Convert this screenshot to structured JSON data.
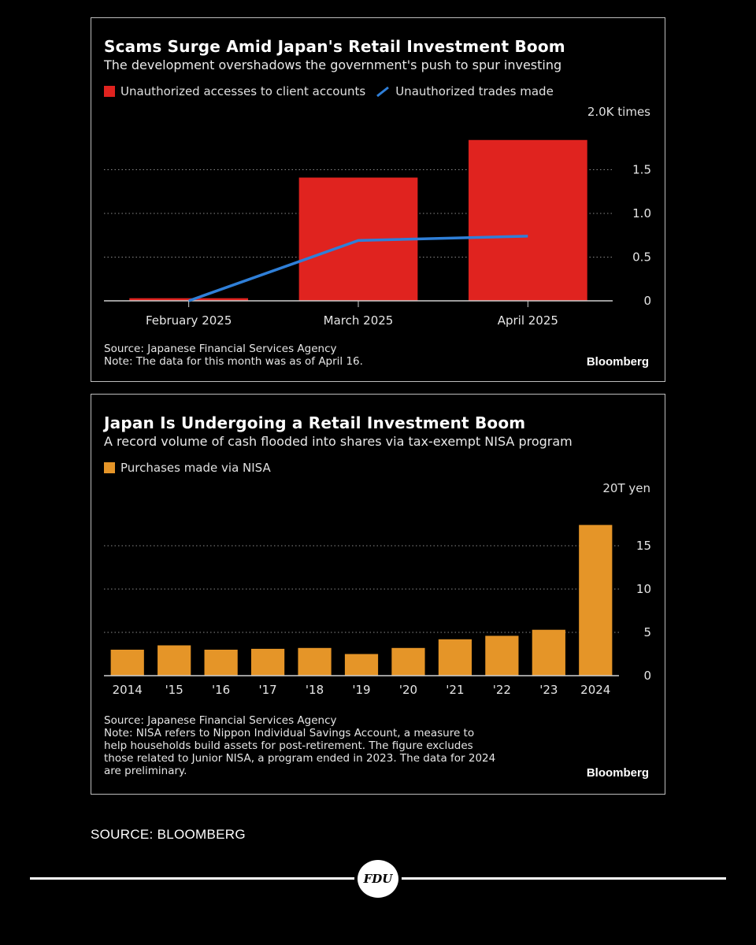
{
  "charts": {
    "panel1": {
      "title": "Scams Surge Amid Japan's Retail Investment Boom",
      "subtitle": "The development overshadows the government's push to spur investing",
      "legend": [
        {
          "label": "Unauthorized accesses to client accounts",
          "color": "#e0231f",
          "kind": "box"
        },
        {
          "label": "Unauthorized trades made",
          "color": "#2f7fd8",
          "kind": "line"
        }
      ],
      "unit_label": "2.0K times",
      "source": "Source: Japanese Financial Services Agency",
      "note": "Note: The data for this month was as of April 16.",
      "brand": "Bloomberg"
    },
    "panel2": {
      "title": "Japan Is Undergoing a Retail Investment Boom",
      "subtitle": "A record volume of cash flooded into shares via tax-exempt NISA program",
      "legend": [
        {
          "label": "Purchases made via NISA",
          "color": "#e59528",
          "kind": "box"
        }
      ],
      "unit_label": "20T yen",
      "source": "Source: Japanese Financial Services Agency",
      "note_lines": [
        "Note: NISA refers to Nippon Individual Savings Account, a measure to",
        "help households build assets for post-retirement. The figure excludes",
        "those related to Junior NISA, a program ended in 2023. The data for 2024",
        "are preliminary."
      ],
      "brand": "Bloomberg"
    }
  },
  "chart_data": [
    {
      "type": "bar",
      "title": "Scams Surge Amid Japan's Retail Investment Boom",
      "subtitle": "The development overshadows the government's push to spur investing",
      "categories": [
        "February 2025",
        "March 2025",
        "April 2025"
      ],
      "series": [
        {
          "name": "Unauthorized accesses to client accounts",
          "type": "bar",
          "color": "#e0231f",
          "values": [
            0.03,
            1.41,
            1.84
          ]
        },
        {
          "name": "Unauthorized trades made",
          "type": "line",
          "color": "#2f7fd8",
          "values": [
            0.0,
            0.69,
            0.74
          ]
        }
      ],
      "ylim": [
        0,
        2.0
      ],
      "yticks": [
        0,
        0.5,
        1.0,
        1.5
      ],
      "ytick_labels": [
        "0",
        "0.5",
        "1.0",
        "1.5"
      ],
      "unit_label": "2.0K times",
      "grid": true,
      "axis_side": "right",
      "legend_position": "top-left"
    },
    {
      "type": "bar",
      "title": "Japan Is Undergoing a Retail Investment Boom",
      "subtitle": "A record volume of cash flooded into shares via tax-exempt NISA program",
      "categories": [
        "2014",
        "'15",
        "'16",
        "'17",
        "'18",
        "'19",
        "'20",
        "'21",
        "'22",
        "'23",
        "2024"
      ],
      "series": [
        {
          "name": "Purchases made via NISA",
          "color": "#e59528",
          "values": [
            3.0,
            3.5,
            3.0,
            3.1,
            3.2,
            2.5,
            3.2,
            4.2,
            4.6,
            5.3,
            17.4
          ]
        }
      ],
      "ylim": [
        0,
        20
      ],
      "yticks": [
        0,
        5,
        10,
        15
      ],
      "ytick_labels": [
        "0",
        "5",
        "10",
        "15"
      ],
      "unit_label": "20T yen",
      "grid": true,
      "axis_side": "right",
      "legend_position": "top-left"
    }
  ],
  "footer": {
    "source": "SOURCE: BLOOMBERG",
    "logo_text": "FDU"
  }
}
